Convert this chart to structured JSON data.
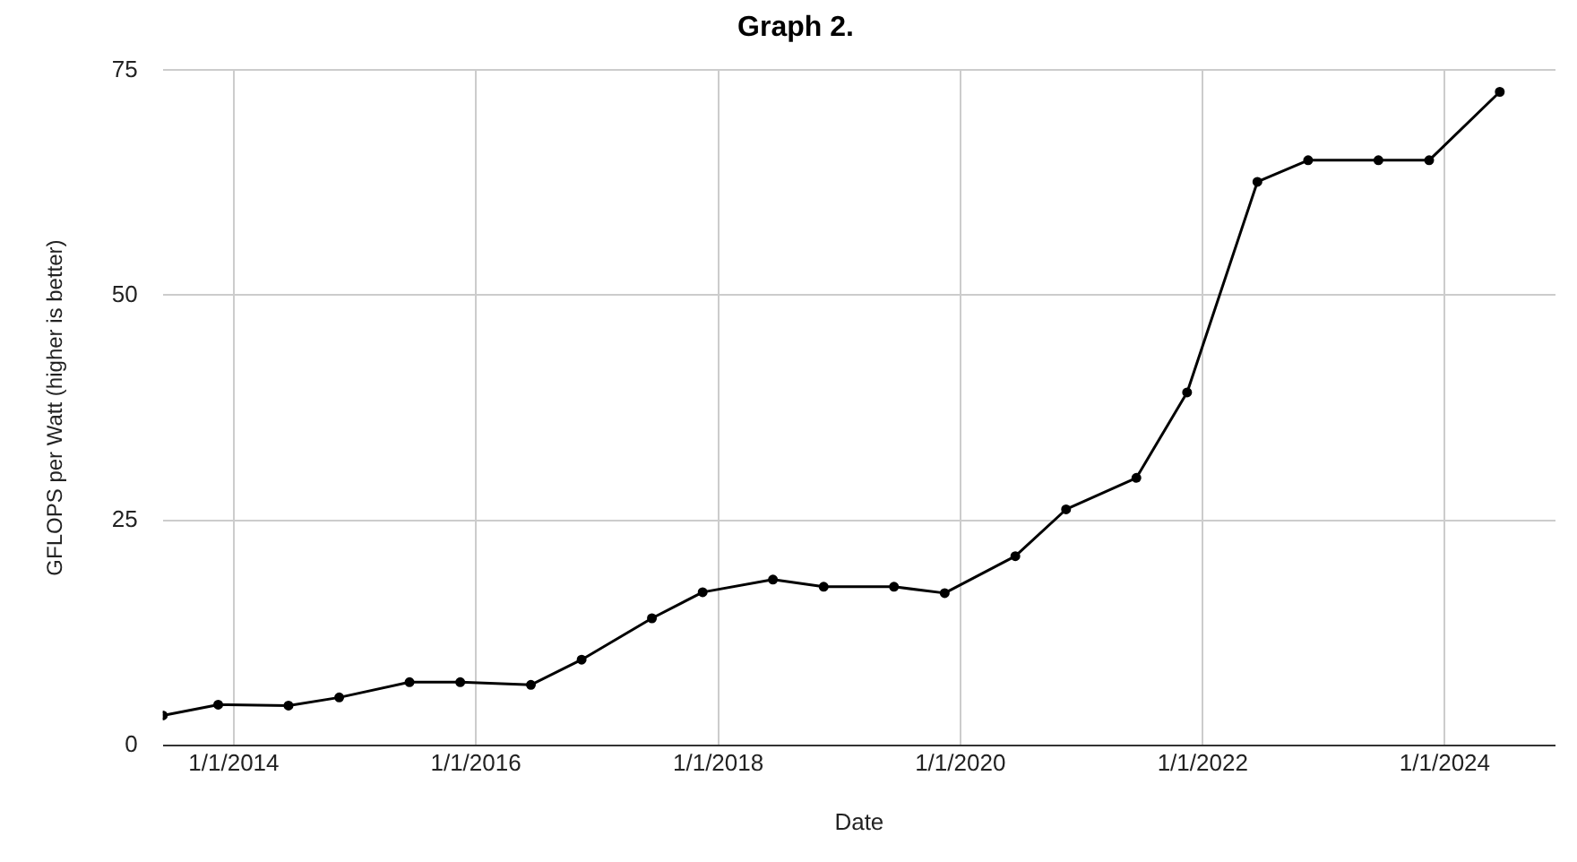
{
  "chart_data": {
    "type": "line",
    "title": "Graph 2.",
    "xlabel": "Date",
    "ylabel": "GFLOPS per Watt (higher is better)",
    "x": [
      "2013-06-01",
      "2013-11-15",
      "2014-06-15",
      "2014-11-15",
      "2015-06-15",
      "2015-11-15",
      "2016-06-15",
      "2016-11-15",
      "2017-06-15",
      "2017-11-15",
      "2018-06-15",
      "2018-11-15",
      "2019-06-15",
      "2019-11-15",
      "2020-06-15",
      "2020-11-15",
      "2021-06-15",
      "2021-11-15",
      "2022-06-15",
      "2022-11-15",
      "2023-06-15",
      "2023-11-15",
      "2024-06-15"
    ],
    "series": [
      {
        "color": "#000000",
        "values": [
          3.3,
          4.5,
          4.4,
          5.3,
          7.0,
          7.0,
          6.7,
          9.5,
          14.1,
          17.0,
          18.4,
          17.6,
          17.6,
          16.9,
          21.0,
          26.2,
          29.7,
          39.2,
          62.6,
          65.0,
          65.0,
          65.0,
          72.6
        ]
      }
    ],
    "xlim": [
      "2013-06-01",
      "2024-11-30"
    ],
    "xticks": [
      {
        "value": "2014-01-01",
        "label": "1/1/2014"
      },
      {
        "value": "2016-01-01",
        "label": "1/1/2016"
      },
      {
        "value": "2018-01-01",
        "label": "1/1/2018"
      },
      {
        "value": "2020-01-01",
        "label": "1/1/2020"
      },
      {
        "value": "2022-01-01",
        "label": "1/1/2022"
      },
      {
        "value": "2024-01-01",
        "label": "1/1/2024"
      }
    ],
    "ylim": [
      0,
      75
    ],
    "yticks": [
      0,
      25,
      50,
      75
    ],
    "grid": true,
    "legend": false,
    "marker": "circle",
    "line_style": "solid"
  }
}
